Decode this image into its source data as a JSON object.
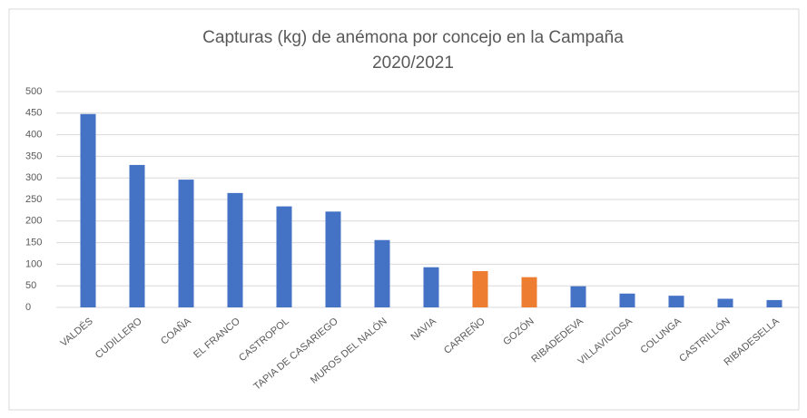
{
  "chart_data": {
    "type": "bar",
    "title": [
      "Capturas (kg) de anémona por concejo en la Campaña",
      "2020/2021"
    ],
    "categories": [
      "VALDÉS",
      "CUDILLERO",
      "COAÑA",
      "EL FRANCO",
      "CASTROPOL",
      "TAPIA DE CASARIEGO",
      "MUROS DEL NALÓN",
      "NAVIA",
      "CARREÑO",
      "GOZÓN",
      "RIBADEDEVA",
      "VILLAVICIOSA",
      "COLUNGA",
      "CASTRILLÓN",
      "RIBADESELLA"
    ],
    "values": [
      448,
      330,
      296,
      265,
      234,
      222,
      156,
      93,
      84,
      70,
      49,
      32,
      27,
      20,
      17
    ],
    "colors": [
      "#4472c4",
      "#4472c4",
      "#4472c4",
      "#4472c4",
      "#4472c4",
      "#4472c4",
      "#4472c4",
      "#4472c4",
      "#ed7d31",
      "#ed7d31",
      "#4472c4",
      "#4472c4",
      "#4472c4",
      "#4472c4",
      "#4472c4"
    ],
    "ylim": [
      0,
      500
    ],
    "yticks": [
      0,
      50,
      100,
      150,
      200,
      250,
      300,
      350,
      400,
      450,
      500
    ],
    "grid": true
  }
}
